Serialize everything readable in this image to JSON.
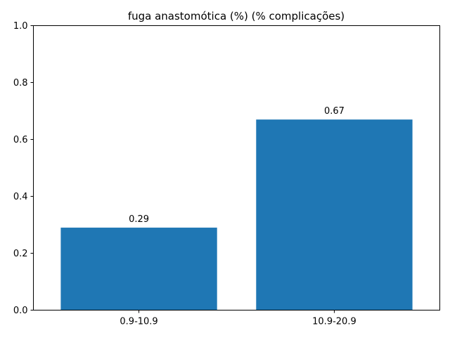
{
  "chart_data": {
    "type": "bar",
    "title": "fuga anastomótica (%) (% complicações)",
    "xlabel": "",
    "ylabel": "",
    "categories": [
      "0.9-10.9",
      "10.9-20.9"
    ],
    "values": [
      0.29,
      0.67
    ],
    "data_labels": [
      "0.29",
      "0.67"
    ],
    "ylim": [
      0,
      1
    ],
    "yticks": [
      0.0,
      0.2,
      0.4,
      0.6,
      0.8,
      1.0
    ],
    "ytick_labels": [
      "0.0",
      "0.2",
      "0.4",
      "0.6",
      "0.8",
      "1.0"
    ],
    "bar_color": "#1f77b4",
    "grid": false,
    "legend": false
  }
}
